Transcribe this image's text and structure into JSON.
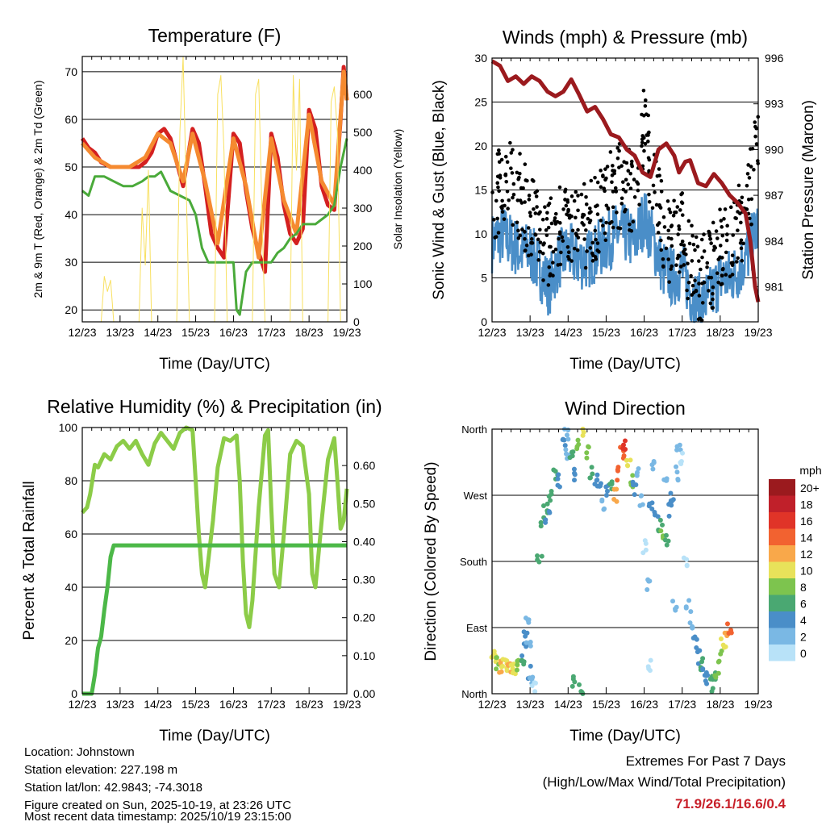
{
  "chart_data": [
    {
      "type": "line",
      "title": "Temperature (F)",
      "xlabel": "Time (Day/UTC)",
      "ylabel": "2m & 9m T (Red, Orange) & 2m Td (Green)",
      "y2label": "Solar Insolation (Yellow)",
      "xticks": [
        "12/23",
        "13/23",
        "14/23",
        "15/23",
        "16/23",
        "17/23",
        "18/23",
        "19/23"
      ],
      "xlim": [
        0,
        168
      ],
      "ylim": [
        17.5,
        73.2
      ],
      "yticks": [
        20,
        30,
        40,
        50,
        60,
        70
      ],
      "y2lim": [
        0,
        700
      ],
      "y2ticks": [
        0,
        100,
        200,
        300,
        400,
        500,
        600
      ],
      "series": [
        {
          "name": "2m T",
          "color": "#d42020",
          "x": [
            0,
            4,
            8,
            12,
            18,
            24,
            30,
            36,
            40,
            44,
            48,
            52,
            56,
            60,
            64,
            70,
            74,
            78,
            82,
            86,
            90,
            96,
            100,
            104,
            108,
            112,
            116,
            120,
            124,
            128,
            132,
            136,
            140,
            144,
            148,
            152,
            156,
            160,
            164,
            166,
            168
          ],
          "y": [
            56,
            54,
            53,
            51,
            50,
            50,
            50,
            50,
            51,
            53,
            57,
            58,
            56,
            51,
            46,
            58,
            55,
            46,
            36,
            33,
            31,
            57,
            55,
            45,
            37,
            32,
            28,
            57,
            52,
            42,
            36,
            34,
            37,
            62,
            58,
            46,
            42,
            41,
            60,
            71,
            64
          ]
        },
        {
          "name": "9m T",
          "color": "#f58a30",
          "x": [
            0,
            8,
            18,
            30,
            40,
            48,
            56,
            64,
            70,
            78,
            86,
            96,
            104,
            112,
            120,
            128,
            136,
            144,
            152,
            160,
            166,
            168
          ],
          "y": [
            55,
            52,
            50,
            50,
            52,
            57,
            55,
            47,
            57,
            47,
            34,
            56,
            46,
            31,
            56,
            43,
            36,
            61,
            47,
            42,
            70,
            64
          ]
        },
        {
          "name": "2m Td",
          "color": "#4aaa3a",
          "x": [
            0,
            4,
            8,
            14,
            20,
            26,
            32,
            38,
            42,
            46,
            50,
            56,
            62,
            68,
            72,
            76,
            80,
            84,
            88,
            92,
            96,
            98,
            100,
            104,
            108,
            112,
            116,
            120,
            124,
            128,
            132,
            136,
            140,
            144,
            148,
            152,
            156,
            160,
            164,
            168
          ],
          "y": [
            45,
            44,
            48,
            48,
            47,
            46,
            46,
            47,
            48,
            48,
            49,
            45,
            44,
            43,
            40,
            33,
            30,
            30,
            30,
            30,
            30,
            20,
            19,
            28,
            30,
            30,
            30,
            30,
            32,
            33,
            35,
            36,
            38,
            38,
            38,
            39,
            40,
            42,
            50,
            56
          ]
        },
        {
          "name": "Solar Insolation",
          "color": "#f8e060",
          "axis": "y2",
          "x": [
            12,
            14,
            16,
            18,
            20,
            36,
            38,
            40,
            42,
            44,
            60,
            62,
            64,
            66,
            68,
            84,
            86,
            88,
            90,
            92,
            108,
            110,
            112,
            114,
            116,
            132,
            134,
            136,
            138,
            140,
            156,
            158,
            160,
            162,
            164
          ],
          "y": [
            0,
            120,
            80,
            110,
            0,
            0,
            300,
            150,
            400,
            0,
            0,
            500,
            700,
            350,
            0,
            0,
            600,
            650,
            450,
            0,
            0,
            600,
            640,
            300,
            0,
            0,
            650,
            400,
            640,
            0,
            0,
            580,
            620,
            500,
            0
          ]
        }
      ]
    },
    {
      "type": "scatter",
      "title": "Winds (mph) & Pressure (mb)",
      "xlabel": "Time (Day/UTC)",
      "ylabel": "Sonic Wind & Gust (Blue, Black)",
      "y2label": "Station Pressure (Maroon)",
      "xticks": [
        "12/23",
        "13/23",
        "14/23",
        "15/23",
        "16/23",
        "17/23",
        "18/23",
        "19/23"
      ],
      "xlim": [
        0,
        168
      ],
      "ylim": [
        0,
        30
      ],
      "yticks": [
        0,
        5,
        10,
        15,
        20,
        25,
        30
      ],
      "y2lim": [
        978.7,
        996
      ],
      "y2ticks": [
        981,
        984,
        987,
        990,
        993,
        996
      ],
      "series": [
        {
          "name": "Wind",
          "color": "#4a8ec8",
          "x": [
            0,
            6,
            12,
            18,
            24,
            30,
            36,
            42,
            48,
            54,
            60,
            66,
            72,
            78,
            84,
            90,
            96,
            102,
            108,
            114,
            120,
            126,
            132,
            138,
            144,
            150,
            156,
            162,
            168
          ],
          "y": [
            9,
            10,
            9,
            8,
            8,
            6,
            4,
            7,
            8,
            7,
            7,
            8,
            9,
            10,
            10,
            9,
            12,
            9,
            6,
            5,
            6,
            3,
            2,
            3,
            5,
            5,
            6,
            8,
            11
          ]
        },
        {
          "name": "Gust",
          "color": "#000000",
          "x": [
            0,
            6,
            12,
            18,
            24,
            30,
            36,
            42,
            48,
            54,
            60,
            66,
            72,
            78,
            84,
            90,
            96,
            102,
            108,
            114,
            120,
            126,
            132,
            138,
            144,
            150,
            156,
            162,
            168
          ],
          "y": [
            14,
            15,
            16,
            14,
            12,
            10,
            9,
            11,
            12,
            11,
            11,
            12,
            14,
            15,
            16,
            14,
            22,
            16,
            10,
            9,
            10,
            6,
            5,
            6,
            8,
            9,
            11,
            14,
            20
          ]
        },
        {
          "name": "Pressure",
          "color": "#9b1a1e",
          "axis": "y2",
          "x": [
            0,
            5,
            10,
            15,
            20,
            25,
            30,
            35,
            40,
            45,
            50,
            55,
            60,
            65,
            70,
            75,
            80,
            85,
            90,
            95,
            100,
            105,
            110,
            115,
            118,
            122,
            125,
            130,
            135,
            140,
            145,
            150,
            155,
            160,
            163,
            166,
            168
          ],
          "y": [
            995.8,
            995.5,
            994.5,
            994.8,
            994.3,
            994.8,
            994.5,
            993.8,
            993.5,
            993.8,
            994.6,
            993.6,
            992.5,
            992.8,
            992,
            991,
            990.8,
            990,
            989.6,
            988.5,
            988.2,
            990,
            990.4,
            989.6,
            988.5,
            989.2,
            989.3,
            987.8,
            987.6,
            988.4,
            987.8,
            987,
            986.5,
            985.8,
            984,
            981,
            980
          ]
        }
      ]
    },
    {
      "type": "line",
      "title": "Relative Humidity (%) & Precipitation (in)",
      "xlabel": "Time (Day/UTC)",
      "ylabel": "Percent & Total Rainfall",
      "xticks": [
        "12/23",
        "13/23",
        "14/23",
        "15/23",
        "16/23",
        "17/23",
        "18/23",
        "19/23"
      ],
      "xlim": [
        0,
        168
      ],
      "ylim": [
        0,
        100
      ],
      "yticks": [
        0,
        20,
        40,
        60,
        80,
        100
      ],
      "y2lim": [
        0,
        0.7
      ],
      "y2ticks": [
        "0.00",
        "0.10",
        "0.20",
        "0.30",
        "0.40",
        "0.50",
        "0.60"
      ],
      "series": [
        {
          "name": "RH",
          "color": "#8ccc48",
          "x": [
            0,
            3,
            5,
            8,
            10,
            14,
            18,
            22,
            26,
            30,
            34,
            38,
            42,
            46,
            50,
            54,
            58,
            62,
            66,
            70,
            72,
            74,
            76,
            78,
            80,
            83,
            86,
            90,
            94,
            98,
            100,
            102,
            104,
            106,
            108,
            112,
            116,
            118,
            120,
            122,
            125,
            128,
            132,
            136,
            140,
            144,
            146,
            148,
            152,
            156,
            160,
            162,
            164,
            166,
            168
          ],
          "y": [
            68,
            70,
            75,
            86,
            85,
            90,
            88,
            93,
            95,
            92,
            95,
            90,
            86,
            94,
            98,
            95,
            92,
            98,
            100,
            99,
            80,
            60,
            45,
            40,
            50,
            65,
            85,
            96,
            95,
            97,
            80,
            50,
            30,
            25,
            35,
            70,
            97,
            99,
            70,
            45,
            40,
            60,
            90,
            95,
            93,
            75,
            45,
            40,
            65,
            88,
            96,
            80,
            62,
            65,
            77
          ]
        },
        {
          "name": "Precipitation",
          "color": "#4cb848",
          "axis": "y2",
          "x": [
            0,
            6,
            8,
            10,
            12,
            14,
            16,
            18,
            20,
            168
          ],
          "y": [
            0,
            0,
            0.05,
            0.12,
            0.15,
            0.22,
            0.28,
            0.36,
            0.39,
            0.39
          ]
        }
      ]
    },
    {
      "type": "scatter",
      "title": "Wind Direction",
      "xlabel": "Time (Day/UTC)",
      "ylabel": "Direction (Colored By Speed)",
      "xticks": [
        "12/23",
        "13/23",
        "14/23",
        "15/23",
        "16/23",
        "17/23",
        "18/23",
        "19/23"
      ],
      "xlim": [
        0,
        168
      ],
      "ylim": [
        0,
        360
      ],
      "yticks": [
        "North",
        "East",
        "South",
        "West",
        "North"
      ],
      "legend": {
        "title": "mph",
        "placement": "right",
        "labels": [
          "20+",
          "18",
          "16",
          "14",
          "12",
          "10",
          "8",
          "6",
          "4",
          "2",
          "0"
        ],
        "colors": [
          "#9b1a1e",
          "#c0202a",
          "#e03428",
          "#f26230",
          "#f9a84a",
          "#e8e25a",
          "#7dc44e",
          "#4aa872",
          "#4a8ec8",
          "#7ab8e4",
          "#b8e2f8"
        ]
      },
      "points": [
        [
          1,
          55,
          10
        ],
        [
          2,
          50,
          11
        ],
        [
          3,
          40,
          9
        ],
        [
          5,
          35,
          12
        ],
        [
          7,
          40,
          11
        ],
        [
          9,
          38,
          10
        ],
        [
          11,
          35,
          12
        ],
        [
          13,
          32,
          11
        ],
        [
          15,
          35,
          10
        ],
        [
          17,
          38,
          8
        ],
        [
          19,
          40,
          7
        ],
        [
          20,
          60,
          5
        ],
        [
          21,
          75,
          4
        ],
        [
          22,
          100,
          3
        ],
        [
          23,
          70,
          2
        ],
        [
          24,
          30,
          5
        ],
        [
          25,
          20,
          3
        ],
        [
          26,
          10,
          1
        ],
        [
          30,
          180,
          7
        ],
        [
          32,
          230,
          6
        ],
        [
          34,
          250,
          7
        ],
        [
          35,
          240,
          5
        ],
        [
          37,
          270,
          6
        ],
        [
          40,
          300,
          6
        ],
        [
          42,
          290,
          5
        ],
        [
          45,
          340,
          4
        ],
        [
          47,
          355,
          3
        ],
        [
          48,
          330,
          2
        ],
        [
          50,
          320,
          6
        ],
        [
          52,
          300,
          5
        ],
        [
          55,
          340,
          9
        ],
        [
          58,
          355,
          11
        ],
        [
          60,
          330,
          8
        ],
        [
          62,
          300,
          7
        ],
        [
          65,
          290,
          5
        ],
        [
          68,
          280,
          4
        ],
        [
          70,
          260,
          3
        ],
        [
          72,
          275,
          4
        ],
        [
          75,
          280,
          6
        ],
        [
          78,
          270,
          12
        ],
        [
          80,
          300,
          14
        ],
        [
          82,
          330,
          15
        ],
        [
          84,
          340,
          16
        ],
        [
          86,
          310,
          11
        ],
        [
          88,
          290,
          8
        ],
        [
          90,
          280,
          4
        ],
        [
          92,
          300,
          3
        ],
        [
          94,
          260,
          2
        ],
        [
          96,
          200,
          1
        ],
        [
          98,
          150,
          2
        ],
        [
          100,
          260,
          4
        ],
        [
          104,
          250,
          5
        ],
        [
          106,
          230,
          6
        ],
        [
          108,
          220,
          8
        ],
        [
          110,
          210,
          6
        ],
        [
          112,
          250,
          5
        ],
        [
          114,
          270,
          4
        ],
        [
          116,
          300,
          3
        ],
        [
          118,
          340,
          2
        ],
        [
          120,
          320,
          1
        ],
        [
          122,
          180,
          1
        ],
        [
          124,
          120,
          2
        ],
        [
          126,
          90,
          3
        ],
        [
          128,
          70,
          4
        ],
        [
          130,
          50,
          5
        ],
        [
          132,
          40,
          6
        ],
        [
          134,
          30,
          4
        ],
        [
          136,
          20,
          5
        ],
        [
          138,
          10,
          6
        ],
        [
          140,
          20,
          7
        ],
        [
          142,
          30,
          8
        ],
        [
          144,
          50,
          9
        ],
        [
          146,
          70,
          11
        ],
        [
          148,
          80,
          13
        ],
        [
          150,
          90,
          14
        ],
        [
          52,
          20,
          7
        ],
        [
          56,
          5,
          6
        ],
        [
          110,
          290,
          2
        ],
        [
          115,
          120,
          2
        ],
        [
          100,
          40,
          1
        ],
        [
          102,
          310,
          2
        ]
      ]
    }
  ],
  "footer": {
    "location": "Location: Johnstown",
    "elevation": "Station elevation: 227.198 m",
    "latlon": "Station lat/lon: 42.9843; -74.3018",
    "created": "Figure created on Sun, 2025-10-19, at 23:26 UTC",
    "recent": "Most recent data timestamp: 2025/10/19 23:15:00",
    "extremes_title": "Extremes For Past 7 Days",
    "extremes_sub": "(High/Low/Max Wind/Total Precipitation)",
    "extremes_values": "71.9/26.1/16.6/0.4",
    "extremes_color": "#c8202a"
  }
}
